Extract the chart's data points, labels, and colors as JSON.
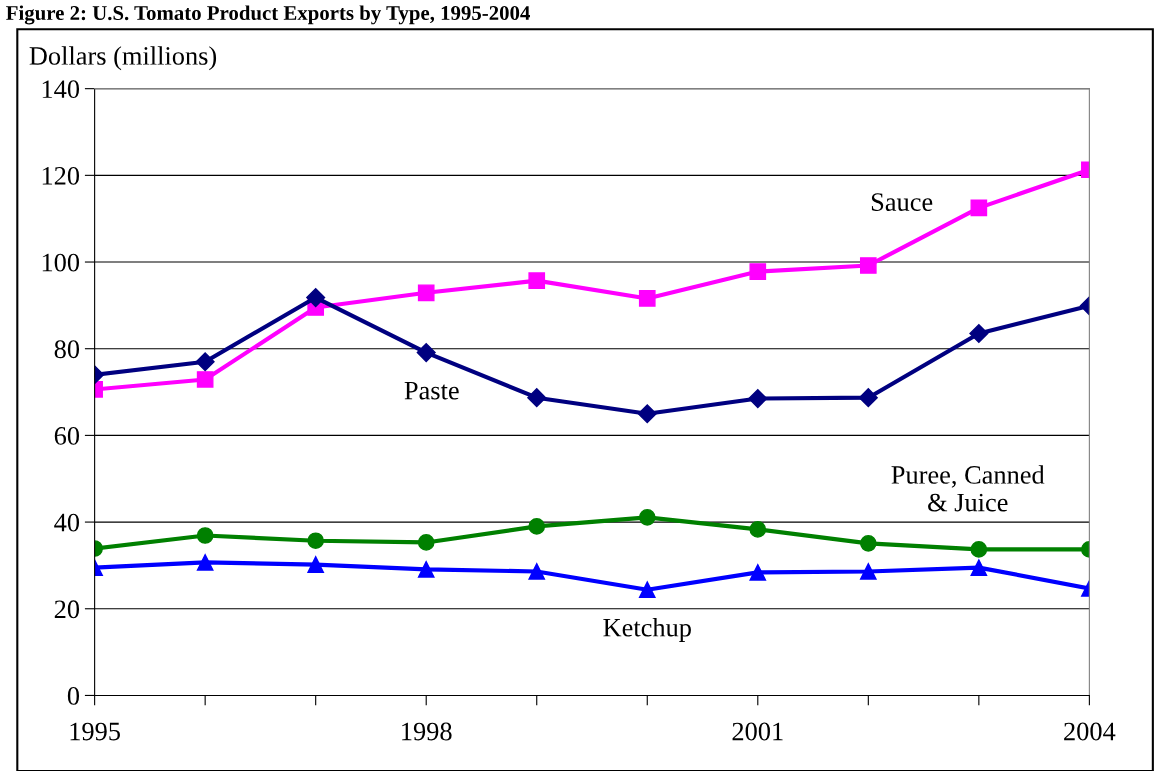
{
  "chart_data": {
    "type": "line",
    "title": "Figure 2: U.S. Tomato Product Exports by Type, 1995-2004",
    "ylabel": "Dollars (millions)",
    "x": [
      1995,
      1996,
      1997,
      1998,
      1999,
      2000,
      2001,
      2002,
      2003,
      2004
    ],
    "xlim": [
      1995,
      2004
    ],
    "xticks": [
      1995,
      {
        "value": 1996,
        "label": null
      },
      {
        "value": 1997,
        "label": null
      },
      1998,
      {
        "value": 1999,
        "label": null
      },
      {
        "value": 2000,
        "label": null
      },
      2001,
      {
        "value": 2002,
        "label": null
      },
      {
        "value": 2003,
        "label": null
      },
      2004
    ],
    "ylim": [
      0,
      140
    ],
    "yticks": [
      0,
      20,
      40,
      60,
      80,
      100,
      120,
      140
    ],
    "grid": "y",
    "legend": false,
    "series": [
      {
        "name": "Sauce",
        "color": "#ff00ff",
        "marker": "square",
        "values": [
          70.6,
          72.9,
          89.5,
          92.9,
          95.7,
          91.6,
          97.8,
          99.2,
          112.5,
          121.3
        ]
      },
      {
        "name": "Paste",
        "color": "#000080",
        "marker": "diamond",
        "values": [
          74.0,
          77.0,
          91.8,
          79.1,
          68.7,
          65.0,
          68.5,
          68.7,
          83.5,
          89.9
        ]
      },
      {
        "name": "Puree, Canned\n& Juice",
        "color": "#008000",
        "marker": "circle",
        "values": [
          33.9,
          36.9,
          35.7,
          35.3,
          39.0,
          41.1,
          38.3,
          35.1,
          33.7,
          33.7
        ]
      },
      {
        "name": "Ketchup",
        "color": "#0000ff",
        "marker": "triangle",
        "values": [
          29.5,
          30.7,
          30.2,
          29.1,
          28.6,
          24.4,
          28.4,
          28.6,
          29.5,
          24.7
        ]
      }
    ]
  }
}
